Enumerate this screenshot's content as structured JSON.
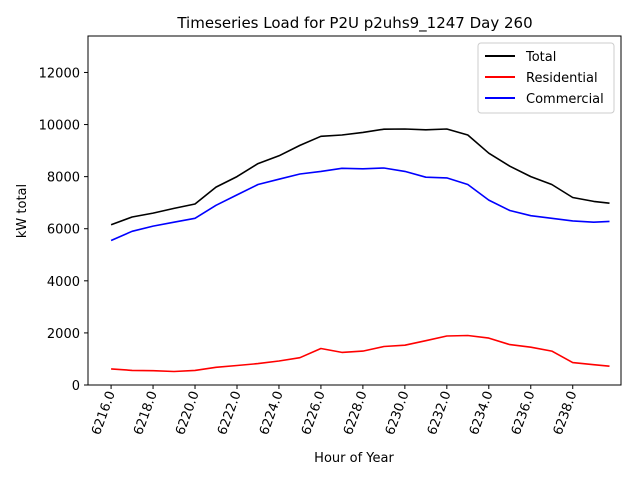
{
  "chart_data": {
    "type": "line",
    "title": "Timeseries Load for P2U p2uhs9_1247  Day 260",
    "xlabel": "Hour of Year",
    "ylabel": "kW total",
    "xlim": [
      6214.9,
      6240.3
    ],
    "ylim": [
      0,
      13400
    ],
    "x_ticks": [
      6216,
      6218,
      6220,
      6222,
      6224,
      6226,
      6228,
      6230,
      6232,
      6234,
      6236,
      6238
    ],
    "x_tick_labels": [
      "6216.0",
      "6218.0",
      "6220.0",
      "6222.0",
      "6224.0",
      "6226.0",
      "6228.0",
      "6230.0",
      "6232.0",
      "6234.0",
      "6236.0",
      "6238.0"
    ],
    "y_ticks": [
      0,
      2000,
      4000,
      6000,
      8000,
      10000,
      12000
    ],
    "y_tick_labels": [
      "0",
      "2000",
      "4000",
      "6000",
      "8000",
      "10000",
      "12000"
    ],
    "legend_position": "top-right",
    "x": [
      6216,
      6217,
      6218,
      6219,
      6220,
      6221,
      6222,
      6223,
      6224,
      6225,
      6226,
      6227,
      6228,
      6229,
      6230,
      6231,
      6232,
      6233,
      6234,
      6235,
      6236,
      6237,
      6238,
      6239,
      6239.75
    ],
    "series": [
      {
        "name": "Total",
        "color": "#000000",
        "values": [
          6150,
          6450,
          6600,
          6780,
          6950,
          7600,
          8000,
          8500,
          8800,
          9200,
          9550,
          9600,
          9700,
          9820,
          9830,
          9800,
          9830,
          9600,
          8900,
          8400,
          8000,
          7700,
          7200,
          7050,
          6980
        ]
      },
      {
        "name": "Residential",
        "color": "#ff0000",
        "values": [
          620,
          560,
          550,
          520,
          560,
          680,
          750,
          820,
          920,
          1050,
          1400,
          1250,
          1300,
          1480,
          1530,
          1700,
          1880,
          1900,
          1800,
          1550,
          1450,
          1300,
          860,
          780,
          720
        ]
      },
      {
        "name": "Commercial",
        "color": "#0000ff",
        "values": [
          5550,
          5900,
          6100,
          6250,
          6400,
          6900,
          7300,
          7700,
          7900,
          8100,
          8200,
          8320,
          8300,
          8330,
          8200,
          7980,
          7950,
          7700,
          7100,
          6700,
          6500,
          6400,
          6300,
          6250,
          6280
        ]
      }
    ]
  }
}
